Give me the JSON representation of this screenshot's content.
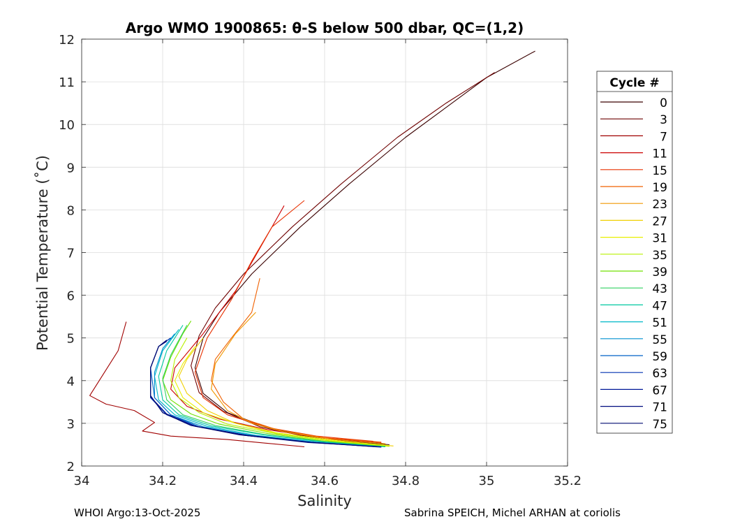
{
  "chart_data": {
    "type": "line",
    "title": "Argo WMO 1900865: θ-S below 500 dbar,  QC=(1,2)",
    "xlabel": "Salinity",
    "ylabel": "Potential Temperature (˚C)",
    "xlim": [
      34,
      35.2
    ],
    "ylim": [
      2,
      12
    ],
    "xticks": [
      34,
      34.2,
      34.4,
      34.6,
      34.8,
      35,
      35.2
    ],
    "xtick_labels": [
      "34",
      "34.2",
      "34.4",
      "34.6",
      "34.8",
      "35",
      "35.2"
    ],
    "yticks": [
      2,
      3,
      4,
      5,
      6,
      7,
      8,
      9,
      10,
      11,
      12
    ],
    "ytick_labels": [
      "2",
      "3",
      "4",
      "5",
      "6",
      "7",
      "8",
      "9",
      "10",
      "11",
      "12"
    ],
    "grid": true,
    "legend": {
      "title": "Cycle #",
      "placement": "right",
      "entries": [
        "0",
        "3",
        "7",
        "11",
        "15",
        "19",
        "23",
        "27",
        "31",
        "35",
        "39",
        "43",
        "47",
        "51",
        "55",
        "59",
        "63",
        "67",
        "71",
        "75"
      ],
      "colors": [
        "#3a0000",
        "#6e0000",
        "#a00000",
        "#cc0000",
        "#e83000",
        "#f06000",
        "#f09800",
        "#f0d000",
        "#e8f000",
        "#b8f000",
        "#70e000",
        "#30d060",
        "#00c8a0",
        "#00b8c8",
        "#0090d0",
        "#0060c8",
        "#0030b0",
        "#001898",
        "#000c80",
        "#000a70"
      ]
    },
    "series": [
      {
        "name": "0",
        "color": "#3a0000",
        "x": [
          34.76,
          34.66,
          34.56,
          34.46,
          34.36,
          34.3,
          34.28,
          34.3,
          34.34,
          34.42,
          34.54,
          34.66,
          34.8,
          34.9,
          35.0,
          35.12
        ],
        "y": [
          2.5,
          2.58,
          2.7,
          2.9,
          3.25,
          3.7,
          4.3,
          5.0,
          5.6,
          6.5,
          7.6,
          8.6,
          9.7,
          10.4,
          11.1,
          11.72
        ]
      },
      {
        "name": "3",
        "color": "#6e0000",
        "x": [
          34.75,
          34.64,
          34.54,
          34.44,
          34.35,
          34.29,
          34.27,
          34.29,
          34.33,
          34.4,
          34.52,
          34.64,
          34.78,
          34.9,
          35.02
        ],
        "y": [
          2.52,
          2.6,
          2.72,
          2.92,
          3.28,
          3.72,
          4.35,
          5.05,
          5.7,
          6.5,
          7.6,
          8.6,
          9.7,
          10.5,
          11.22
        ]
      },
      {
        "name": "7",
        "color": "#a00000",
        "x": [
          34.55,
          34.36,
          34.22,
          34.15,
          34.18,
          34.13,
          34.06,
          34.02,
          34.05,
          34.09,
          34.11
        ],
        "y": [
          2.45,
          2.62,
          2.7,
          2.82,
          3.02,
          3.3,
          3.45,
          3.65,
          4.1,
          4.7,
          5.38
        ]
      },
      {
        "name": "11",
        "color": "#cc0000",
        "x": [
          34.74,
          34.6,
          34.46,
          34.34,
          34.26,
          34.22,
          34.23,
          34.3,
          34.38,
          34.44,
          34.5
        ],
        "y": [
          2.55,
          2.65,
          2.85,
          3.1,
          3.4,
          3.8,
          4.3,
          5.1,
          6.1,
          7.1,
          8.1
        ]
      },
      {
        "name": "15",
        "color": "#e83000",
        "x": [
          34.72,
          34.58,
          34.46,
          34.36,
          34.3,
          34.28,
          34.31,
          34.37,
          34.42,
          34.47,
          34.55
        ],
        "y": [
          2.58,
          2.7,
          2.9,
          3.2,
          3.6,
          4.2,
          5.0,
          5.9,
          6.8,
          7.6,
          8.22
        ]
      },
      {
        "name": "19",
        "color": "#f06000",
        "x": [
          34.74,
          34.6,
          34.48,
          34.4,
          34.35,
          34.32,
          34.33,
          34.37,
          34.42,
          34.44
        ],
        "y": [
          2.56,
          2.66,
          2.86,
          3.1,
          3.5,
          4.0,
          4.5,
          5.0,
          5.6,
          6.4
        ]
      },
      {
        "name": "23",
        "color": "#f09800",
        "x": [
          34.75,
          34.62,
          34.5,
          34.42,
          34.36,
          34.32,
          34.33,
          34.38,
          34.43
        ],
        "y": [
          2.52,
          2.62,
          2.8,
          3.0,
          3.3,
          3.8,
          4.4,
          5.1,
          5.6
        ]
      },
      {
        "name": "27",
        "color": "#f0d000",
        "x": [
          34.77,
          34.62,
          34.48,
          34.38,
          34.31,
          34.26,
          34.24,
          34.26,
          34.3
        ],
        "y": [
          2.47,
          2.58,
          2.76,
          3.0,
          3.3,
          3.7,
          4.1,
          4.5,
          5.0
        ]
      },
      {
        "name": "31",
        "color": "#e8f000",
        "x": [
          34.76,
          34.62,
          34.48,
          34.38,
          34.3,
          34.25,
          34.23,
          34.25,
          34.28
        ],
        "y": [
          2.48,
          2.6,
          2.78,
          3.0,
          3.25,
          3.6,
          4.0,
          4.4,
          4.8
        ]
      },
      {
        "name": "35",
        "color": "#b8f000",
        "x": [
          34.76,
          34.62,
          34.48,
          34.36,
          34.29,
          34.24,
          34.22,
          34.23,
          34.26
        ],
        "y": [
          2.46,
          2.58,
          2.76,
          2.98,
          3.25,
          3.6,
          4.0,
          4.5,
          5.0
        ]
      },
      {
        "name": "39",
        "color": "#70e000",
        "x": [
          34.75,
          34.6,
          34.46,
          34.34,
          34.27,
          34.22,
          34.2,
          34.22,
          34.25,
          34.27
        ],
        "y": [
          2.46,
          2.58,
          2.76,
          2.98,
          3.22,
          3.55,
          4.0,
          4.55,
          5.1,
          5.4
        ]
      },
      {
        "name": "43",
        "color": "#30d060",
        "x": [
          34.75,
          34.6,
          34.45,
          34.33,
          34.25,
          34.21,
          34.2,
          34.22,
          34.26
        ],
        "y": [
          2.45,
          2.57,
          2.74,
          2.95,
          3.2,
          3.55,
          4.05,
          4.6,
          5.3
        ]
      },
      {
        "name": "47",
        "color": "#00c8a0",
        "x": [
          34.75,
          34.6,
          34.45,
          34.32,
          34.24,
          34.2,
          34.19,
          34.21,
          34.25
        ],
        "y": [
          2.45,
          2.56,
          2.73,
          2.94,
          3.2,
          3.55,
          4.1,
          4.7,
          5.3
        ]
      },
      {
        "name": "51",
        "color": "#00b8c8",
        "x": [
          34.74,
          34.58,
          34.43,
          34.31,
          34.23,
          34.19,
          34.18,
          34.2,
          34.24
        ],
        "y": [
          2.45,
          2.56,
          2.72,
          2.93,
          3.2,
          3.55,
          4.1,
          4.7,
          5.2
        ]
      },
      {
        "name": "55",
        "color": "#0090d0",
        "x": [
          34.74,
          34.58,
          34.42,
          34.3,
          34.22,
          34.18,
          34.18,
          34.2,
          34.23
        ],
        "y": [
          2.45,
          2.56,
          2.72,
          2.92,
          3.2,
          3.6,
          4.2,
          4.75,
          5.1
        ]
      },
      {
        "name": "59",
        "color": "#0060c8",
        "x": [
          34.74,
          34.57,
          34.41,
          34.29,
          34.22,
          34.18,
          34.17,
          34.19,
          34.22
        ],
        "y": [
          2.45,
          2.55,
          2.71,
          2.92,
          3.2,
          3.6,
          4.3,
          4.8,
          5.0
        ]
      },
      {
        "name": "63",
        "color": "#0030b0",
        "x": [
          34.74,
          34.57,
          34.41,
          34.28,
          34.21,
          34.17,
          34.17,
          34.19,
          34.22
        ],
        "y": [
          2.44,
          2.55,
          2.72,
          2.93,
          3.2,
          3.6,
          4.3,
          4.8,
          5.0
        ]
      },
      {
        "name": "67",
        "color": "#001898",
        "x": [
          34.74,
          34.56,
          34.4,
          34.28,
          34.21,
          34.17,
          34.17,
          34.19,
          34.21
        ],
        "y": [
          2.45,
          2.55,
          2.72,
          2.94,
          3.22,
          3.62,
          4.3,
          4.8,
          4.95
        ]
      },
      {
        "name": "71",
        "color": "#000c80",
        "x": [
          34.73,
          34.56,
          34.4,
          34.27,
          34.2,
          34.17,
          34.17,
          34.19,
          34.21
        ],
        "y": [
          2.45,
          2.56,
          2.73,
          2.95,
          3.25,
          3.65,
          4.3,
          4.8,
          4.92
        ]
      },
      {
        "name": "75",
        "color": "#000a70",
        "x": [
          34.73,
          34.56,
          34.39,
          34.27,
          34.2,
          34.17,
          34.17,
          34.19,
          34.21
        ],
        "y": [
          2.45,
          2.56,
          2.73,
          2.95,
          3.25,
          3.65,
          4.3,
          4.8,
          4.95
        ]
      }
    ]
  },
  "footer": {
    "left": "WHOI Argo:13-Oct-2025",
    "right": "Sabrina SPEICH, Michel ARHAN at coriolis"
  }
}
